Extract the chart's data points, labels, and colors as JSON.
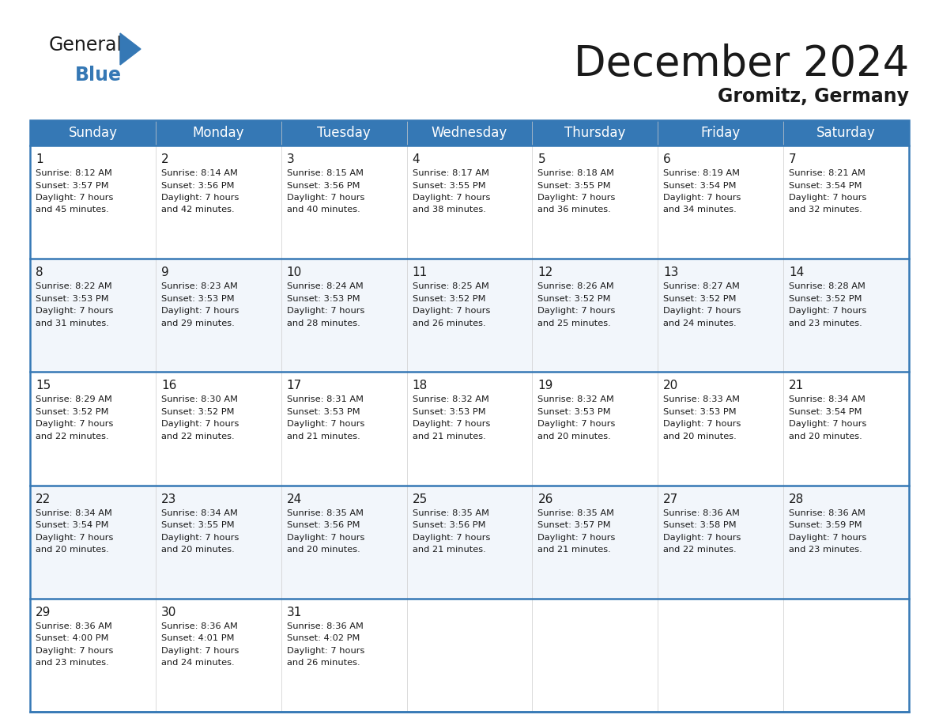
{
  "title": "December 2024",
  "subtitle": "Gromitz, Germany",
  "header_bg_color": "#3578b5",
  "header_text_color": "#ffffff",
  "cell_bg_light": "#f2f6fb",
  "cell_bg_white": "#ffffff",
  "grid_line_color": "#3578b5",
  "text_color": "#1a1a1a",
  "day_names": [
    "Sunday",
    "Monday",
    "Tuesday",
    "Wednesday",
    "Thursday",
    "Friday",
    "Saturday"
  ],
  "weeks": [
    [
      {
        "day": 1,
        "sunrise": "8:12 AM",
        "sunset": "3:57 PM",
        "daylight_hours": 7,
        "daylight_minutes": 45
      },
      {
        "day": 2,
        "sunrise": "8:14 AM",
        "sunset": "3:56 PM",
        "daylight_hours": 7,
        "daylight_minutes": 42
      },
      {
        "day": 3,
        "sunrise": "8:15 AM",
        "sunset": "3:56 PM",
        "daylight_hours": 7,
        "daylight_minutes": 40
      },
      {
        "day": 4,
        "sunrise": "8:17 AM",
        "sunset": "3:55 PM",
        "daylight_hours": 7,
        "daylight_minutes": 38
      },
      {
        "day": 5,
        "sunrise": "8:18 AM",
        "sunset": "3:55 PM",
        "daylight_hours": 7,
        "daylight_minutes": 36
      },
      {
        "day": 6,
        "sunrise": "8:19 AM",
        "sunset": "3:54 PM",
        "daylight_hours": 7,
        "daylight_minutes": 34
      },
      {
        "day": 7,
        "sunrise": "8:21 AM",
        "sunset": "3:54 PM",
        "daylight_hours": 7,
        "daylight_minutes": 32
      }
    ],
    [
      {
        "day": 8,
        "sunrise": "8:22 AM",
        "sunset": "3:53 PM",
        "daylight_hours": 7,
        "daylight_minutes": 31
      },
      {
        "day": 9,
        "sunrise": "8:23 AM",
        "sunset": "3:53 PM",
        "daylight_hours": 7,
        "daylight_minutes": 29
      },
      {
        "day": 10,
        "sunrise": "8:24 AM",
        "sunset": "3:53 PM",
        "daylight_hours": 7,
        "daylight_minutes": 28
      },
      {
        "day": 11,
        "sunrise": "8:25 AM",
        "sunset": "3:52 PM",
        "daylight_hours": 7,
        "daylight_minutes": 26
      },
      {
        "day": 12,
        "sunrise": "8:26 AM",
        "sunset": "3:52 PM",
        "daylight_hours": 7,
        "daylight_minutes": 25
      },
      {
        "day": 13,
        "sunrise": "8:27 AM",
        "sunset": "3:52 PM",
        "daylight_hours": 7,
        "daylight_minutes": 24
      },
      {
        "day": 14,
        "sunrise": "8:28 AM",
        "sunset": "3:52 PM",
        "daylight_hours": 7,
        "daylight_minutes": 23
      }
    ],
    [
      {
        "day": 15,
        "sunrise": "8:29 AM",
        "sunset": "3:52 PM",
        "daylight_hours": 7,
        "daylight_minutes": 22
      },
      {
        "day": 16,
        "sunrise": "8:30 AM",
        "sunset": "3:52 PM",
        "daylight_hours": 7,
        "daylight_minutes": 22
      },
      {
        "day": 17,
        "sunrise": "8:31 AM",
        "sunset": "3:53 PM",
        "daylight_hours": 7,
        "daylight_minutes": 21
      },
      {
        "day": 18,
        "sunrise": "8:32 AM",
        "sunset": "3:53 PM",
        "daylight_hours": 7,
        "daylight_minutes": 21
      },
      {
        "day": 19,
        "sunrise": "8:32 AM",
        "sunset": "3:53 PM",
        "daylight_hours": 7,
        "daylight_minutes": 20
      },
      {
        "day": 20,
        "sunrise": "8:33 AM",
        "sunset": "3:53 PM",
        "daylight_hours": 7,
        "daylight_minutes": 20
      },
      {
        "day": 21,
        "sunrise": "8:34 AM",
        "sunset": "3:54 PM",
        "daylight_hours": 7,
        "daylight_minutes": 20
      }
    ],
    [
      {
        "day": 22,
        "sunrise": "8:34 AM",
        "sunset": "3:54 PM",
        "daylight_hours": 7,
        "daylight_minutes": 20
      },
      {
        "day": 23,
        "sunrise": "8:34 AM",
        "sunset": "3:55 PM",
        "daylight_hours": 7,
        "daylight_minutes": 20
      },
      {
        "day": 24,
        "sunrise": "8:35 AM",
        "sunset": "3:56 PM",
        "daylight_hours": 7,
        "daylight_minutes": 20
      },
      {
        "day": 25,
        "sunrise": "8:35 AM",
        "sunset": "3:56 PM",
        "daylight_hours": 7,
        "daylight_minutes": 21
      },
      {
        "day": 26,
        "sunrise": "8:35 AM",
        "sunset": "3:57 PM",
        "daylight_hours": 7,
        "daylight_minutes": 21
      },
      {
        "day": 27,
        "sunrise": "8:36 AM",
        "sunset": "3:58 PM",
        "daylight_hours": 7,
        "daylight_minutes": 22
      },
      {
        "day": 28,
        "sunrise": "8:36 AM",
        "sunset": "3:59 PM",
        "daylight_hours": 7,
        "daylight_minutes": 23
      }
    ],
    [
      {
        "day": 29,
        "sunrise": "8:36 AM",
        "sunset": "4:00 PM",
        "daylight_hours": 7,
        "daylight_minutes": 23
      },
      {
        "day": 30,
        "sunrise": "8:36 AM",
        "sunset": "4:01 PM",
        "daylight_hours": 7,
        "daylight_minutes": 24
      },
      {
        "day": 31,
        "sunrise": "8:36 AM",
        "sunset": "4:02 PM",
        "daylight_hours": 7,
        "daylight_minutes": 26
      },
      null,
      null,
      null,
      null
    ]
  ],
  "logo_color_general": "#1a1a1a",
  "logo_color_blue": "#3578b5",
  "title_fontsize": 38,
  "subtitle_fontsize": 17,
  "header_fontsize": 12,
  "day_num_fontsize": 11,
  "cell_text_fontsize": 8.2,
  "bg_color": "#ffffff"
}
